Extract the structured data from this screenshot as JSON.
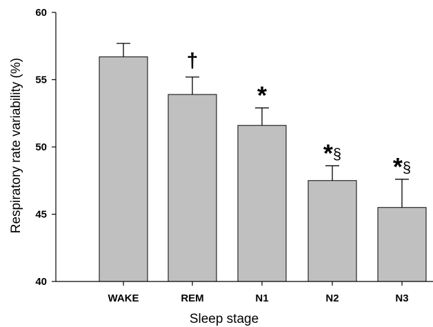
{
  "chart_data": {
    "type": "bar",
    "categories": [
      "WAKE",
      "REM",
      "N1",
      "N2",
      "N3"
    ],
    "values": [
      56.7,
      53.9,
      51.6,
      47.5,
      45.5
    ],
    "error_plus": [
      1.0,
      1.3,
      1.3,
      1.1,
      2.1
    ],
    "annotations": [
      {
        "category": "WAKE",
        "text": ""
      },
      {
        "category": "REM",
        "text": "†"
      },
      {
        "category": "N1",
        "text": "*"
      },
      {
        "category": "N2",
        "text": "*§"
      },
      {
        "category": "N3",
        "text": "*§"
      }
    ],
    "xlabel": "Sleep stage",
    "ylabel": "Respiratory rate  variability (%)",
    "ylim": [
      40,
      60
    ],
    "yticks": [
      "40",
      "45",
      "50",
      "55",
      "60"
    ],
    "grid": false,
    "bar_color": "#c0c0c0",
    "edge_color": "#000000"
  }
}
